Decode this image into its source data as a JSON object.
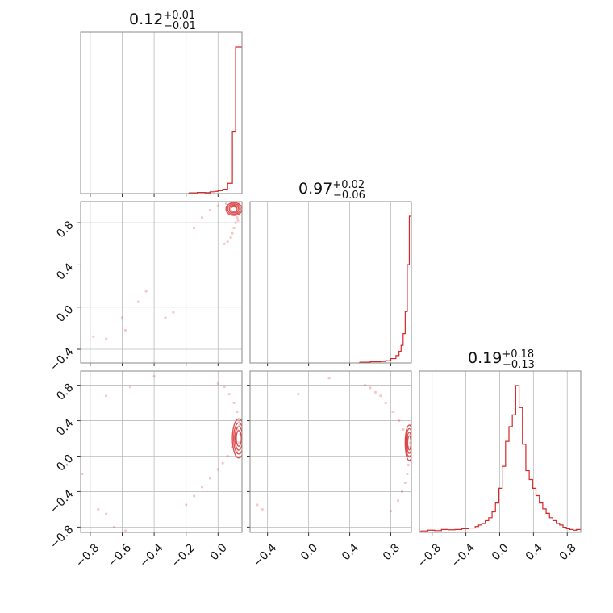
{
  "chart_data": {
    "type": "corner",
    "color": "#d62728",
    "grid": true,
    "parameters": [
      {
        "median": "0.12",
        "plus": "+0.01",
        "minus": "−0.01"
      },
      {
        "median": "0.97",
        "plus": "+0.02",
        "minus": "−0.06"
      },
      {
        "median": "0.19",
        "plus": "+0.18",
        "minus": "−0.13"
      }
    ],
    "axes": {
      "p0": {
        "range": [
          -0.86,
          0.15
        ],
        "ticks": [
          "−0.8",
          "−0.6",
          "−0.4",
          "−0.2",
          "0.0"
        ],
        "tick_values": [
          -0.8,
          -0.6,
          -0.4,
          -0.2,
          0.0
        ]
      },
      "p1": {
        "range": [
          -0.57,
          1.0
        ],
        "ticks": [
          "−0.4",
          "0.0",
          "0.4",
          "0.8"
        ],
        "tick_values": [
          -0.4,
          0.0,
          0.4,
          0.8
        ]
      },
      "p1_row": {
        "range": [
          -0.53,
          1.0
        ],
        "ticks": [
          "0.8",
          "0.4",
          "0.0",
          "−0.4"
        ],
        "tick_values": [
          0.8,
          0.4,
          0.0,
          -0.4
        ]
      },
      "p2": {
        "range": [
          -0.95,
          0.96
        ],
        "ticks": [
          "−0.8",
          "−0.4",
          "0.0",
          "0.4",
          "0.8"
        ],
        "tick_values": [
          -0.8,
          -0.4,
          0.0,
          0.4,
          0.8
        ]
      },
      "p2_row": {
        "range": [
          -0.86,
          0.96
        ],
        "ticks": [
          "0.8",
          "0.4",
          "0.0",
          "−0.4",
          "−0.8"
        ],
        "tick_values": [
          0.8,
          0.4,
          0.0,
          -0.4,
          -0.8
        ]
      }
    },
    "histograms": [
      {
        "param": 0,
        "x": [
          -0.18,
          -0.13,
          -0.08,
          -0.05,
          -0.02,
          0.0,
          0.03,
          0.06,
          0.09,
          0.11,
          0.125,
          0.14
        ],
        "density": [
          0.005,
          0.008,
          0.006,
          0.012,
          0.015,
          0.02,
          0.03,
          0.07,
          0.42,
          1.0,
          1.0,
          1.0
        ]
      },
      {
        "param": 1,
        "x": [
          0.5,
          0.6,
          0.7,
          0.75,
          0.8,
          0.85,
          0.88,
          0.9,
          0.92,
          0.94,
          0.96,
          0.98
        ],
        "density": [
          0.005,
          0.008,
          0.01,
          0.015,
          0.03,
          0.05,
          0.08,
          0.12,
          0.2,
          0.35,
          0.67,
          1.0
        ]
      },
      {
        "param": 2,
        "x": [
          -0.93,
          -0.85,
          -0.77,
          -0.69,
          -0.61,
          -0.53,
          -0.45,
          -0.37,
          -0.29,
          -0.25,
          -0.21,
          -0.17,
          -0.13,
          -0.09,
          -0.05,
          -0.01,
          0.03,
          0.07,
          0.11,
          0.15,
          0.19,
          0.23,
          0.27,
          0.31,
          0.35,
          0.39,
          0.43,
          0.47,
          0.51,
          0.55,
          0.59,
          0.63,
          0.67,
          0.71,
          0.75,
          0.79,
          0.83,
          0.87,
          0.91
        ],
        "density": [
          0.01,
          0.015,
          0.012,
          0.02,
          0.018,
          0.02,
          0.025,
          0.03,
          0.04,
          0.05,
          0.06,
          0.08,
          0.1,
          0.14,
          0.2,
          0.3,
          0.45,
          0.62,
          0.72,
          0.8,
          1.0,
          0.85,
          0.6,
          0.42,
          0.36,
          0.3,
          0.25,
          0.2,
          0.16,
          0.13,
          0.1,
          0.08,
          0.06,
          0.05,
          0.035,
          0.025,
          0.02,
          0.015,
          0.02
        ]
      }
    ],
    "scatter_panels": [
      {
        "x_param": 0,
        "y_param": 1,
        "points": [
          [
            -0.78,
            -0.28
          ],
          [
            -0.7,
            -0.3
          ],
          [
            -0.6,
            -0.1
          ],
          [
            -0.5,
            0.05
          ],
          [
            -0.45,
            0.15
          ],
          [
            -0.58,
            -0.22
          ],
          [
            -0.33,
            -0.1
          ],
          [
            -0.28,
            -0.05
          ],
          [
            -0.15,
            0.75
          ],
          [
            -0.1,
            0.85
          ],
          [
            -0.05,
            0.92
          ],
          [
            0.0,
            0.96
          ],
          [
            0.05,
            0.98
          ],
          [
            0.08,
            0.99
          ],
          [
            0.1,
            0.97
          ],
          [
            0.11,
            0.95
          ],
          [
            0.12,
            0.9
          ],
          [
            0.12,
            0.85
          ],
          [
            0.11,
            0.8
          ],
          [
            0.1,
            0.75
          ],
          [
            0.09,
            0.7
          ],
          [
            0.08,
            0.66
          ],
          [
            0.06,
            0.62
          ],
          [
            0.04,
            0.6
          ],
          [
            0.13,
            0.98
          ],
          [
            0.135,
            0.94
          ],
          [
            0.13,
            0.88
          ],
          [
            0.125,
            0.82
          ]
        ]
      },
      {
        "x_param": 0,
        "y_param": 2,
        "points": [
          [
            -0.7,
            0.68
          ],
          [
            -0.55,
            0.78
          ],
          [
            -0.4,
            0.9
          ],
          [
            -0.75,
            -0.6
          ],
          [
            -0.7,
            -0.65
          ],
          [
            -0.65,
            -0.8
          ],
          [
            -0.58,
            -0.84
          ],
          [
            -0.2,
            -0.55
          ],
          [
            -0.15,
            -0.45
          ],
          [
            -0.1,
            -0.35
          ],
          [
            -0.05,
            -0.25
          ],
          [
            0.0,
            -0.15
          ],
          [
            0.03,
            -0.08
          ],
          [
            0.06,
            0.0
          ],
          [
            0.09,
            0.1
          ],
          [
            0.11,
            0.2
          ],
          [
            0.12,
            0.3
          ],
          [
            0.13,
            0.4
          ],
          [
            0.12,
            0.5
          ],
          [
            0.1,
            0.6
          ],
          [
            0.07,
            0.7
          ],
          [
            0.04,
            0.78
          ],
          [
            0.0,
            0.82
          ],
          [
            0.12,
            0.05
          ],
          [
            0.13,
            0.15
          ],
          [
            0.14,
            0.25
          ],
          [
            0.135,
            0.35
          ],
          [
            -0.85,
            -0.2
          ]
        ]
      },
      {
        "x_param": 1,
        "y_param": 2,
        "points": [
          [
            -0.5,
            -0.55
          ],
          [
            -0.45,
            -0.6
          ],
          [
            -0.1,
            0.7
          ],
          [
            0.55,
            0.8
          ],
          [
            0.65,
            0.72
          ],
          [
            0.75,
            0.6
          ],
          [
            0.82,
            0.5
          ],
          [
            0.88,
            0.4
          ],
          [
            0.92,
            0.3
          ],
          [
            0.95,
            0.2
          ],
          [
            0.97,
            0.1
          ],
          [
            0.98,
            0.0
          ],
          [
            0.97,
            -0.1
          ],
          [
            0.96,
            -0.2
          ],
          [
            0.94,
            -0.3
          ],
          [
            0.91,
            -0.4
          ],
          [
            0.87,
            -0.5
          ],
          [
            0.8,
            -0.62
          ],
          [
            0.99,
            0.35
          ],
          [
            0.99,
            0.15
          ],
          [
            0.99,
            -0.05
          ],
          [
            0.99,
            0.25
          ],
          [
            0.7,
            0.68
          ],
          [
            0.6,
            0.77
          ],
          [
            0.2,
            0.88
          ]
        ]
      }
    ],
    "contour_panels": [
      {
        "x_param": 0,
        "y_param": 1,
        "center": [
          0.1,
          0.93
        ],
        "radius": [
          0.05,
          0.06
        ]
      },
      {
        "x_param": 0,
        "y_param": 2,
        "center": [
          0.13,
          0.2
        ],
        "radius": [
          0.04,
          0.22
        ]
      },
      {
        "x_param": 1,
        "y_param": 2,
        "center": [
          0.98,
          0.15
        ],
        "radius": [
          0.04,
          0.2
        ]
      }
    ]
  }
}
